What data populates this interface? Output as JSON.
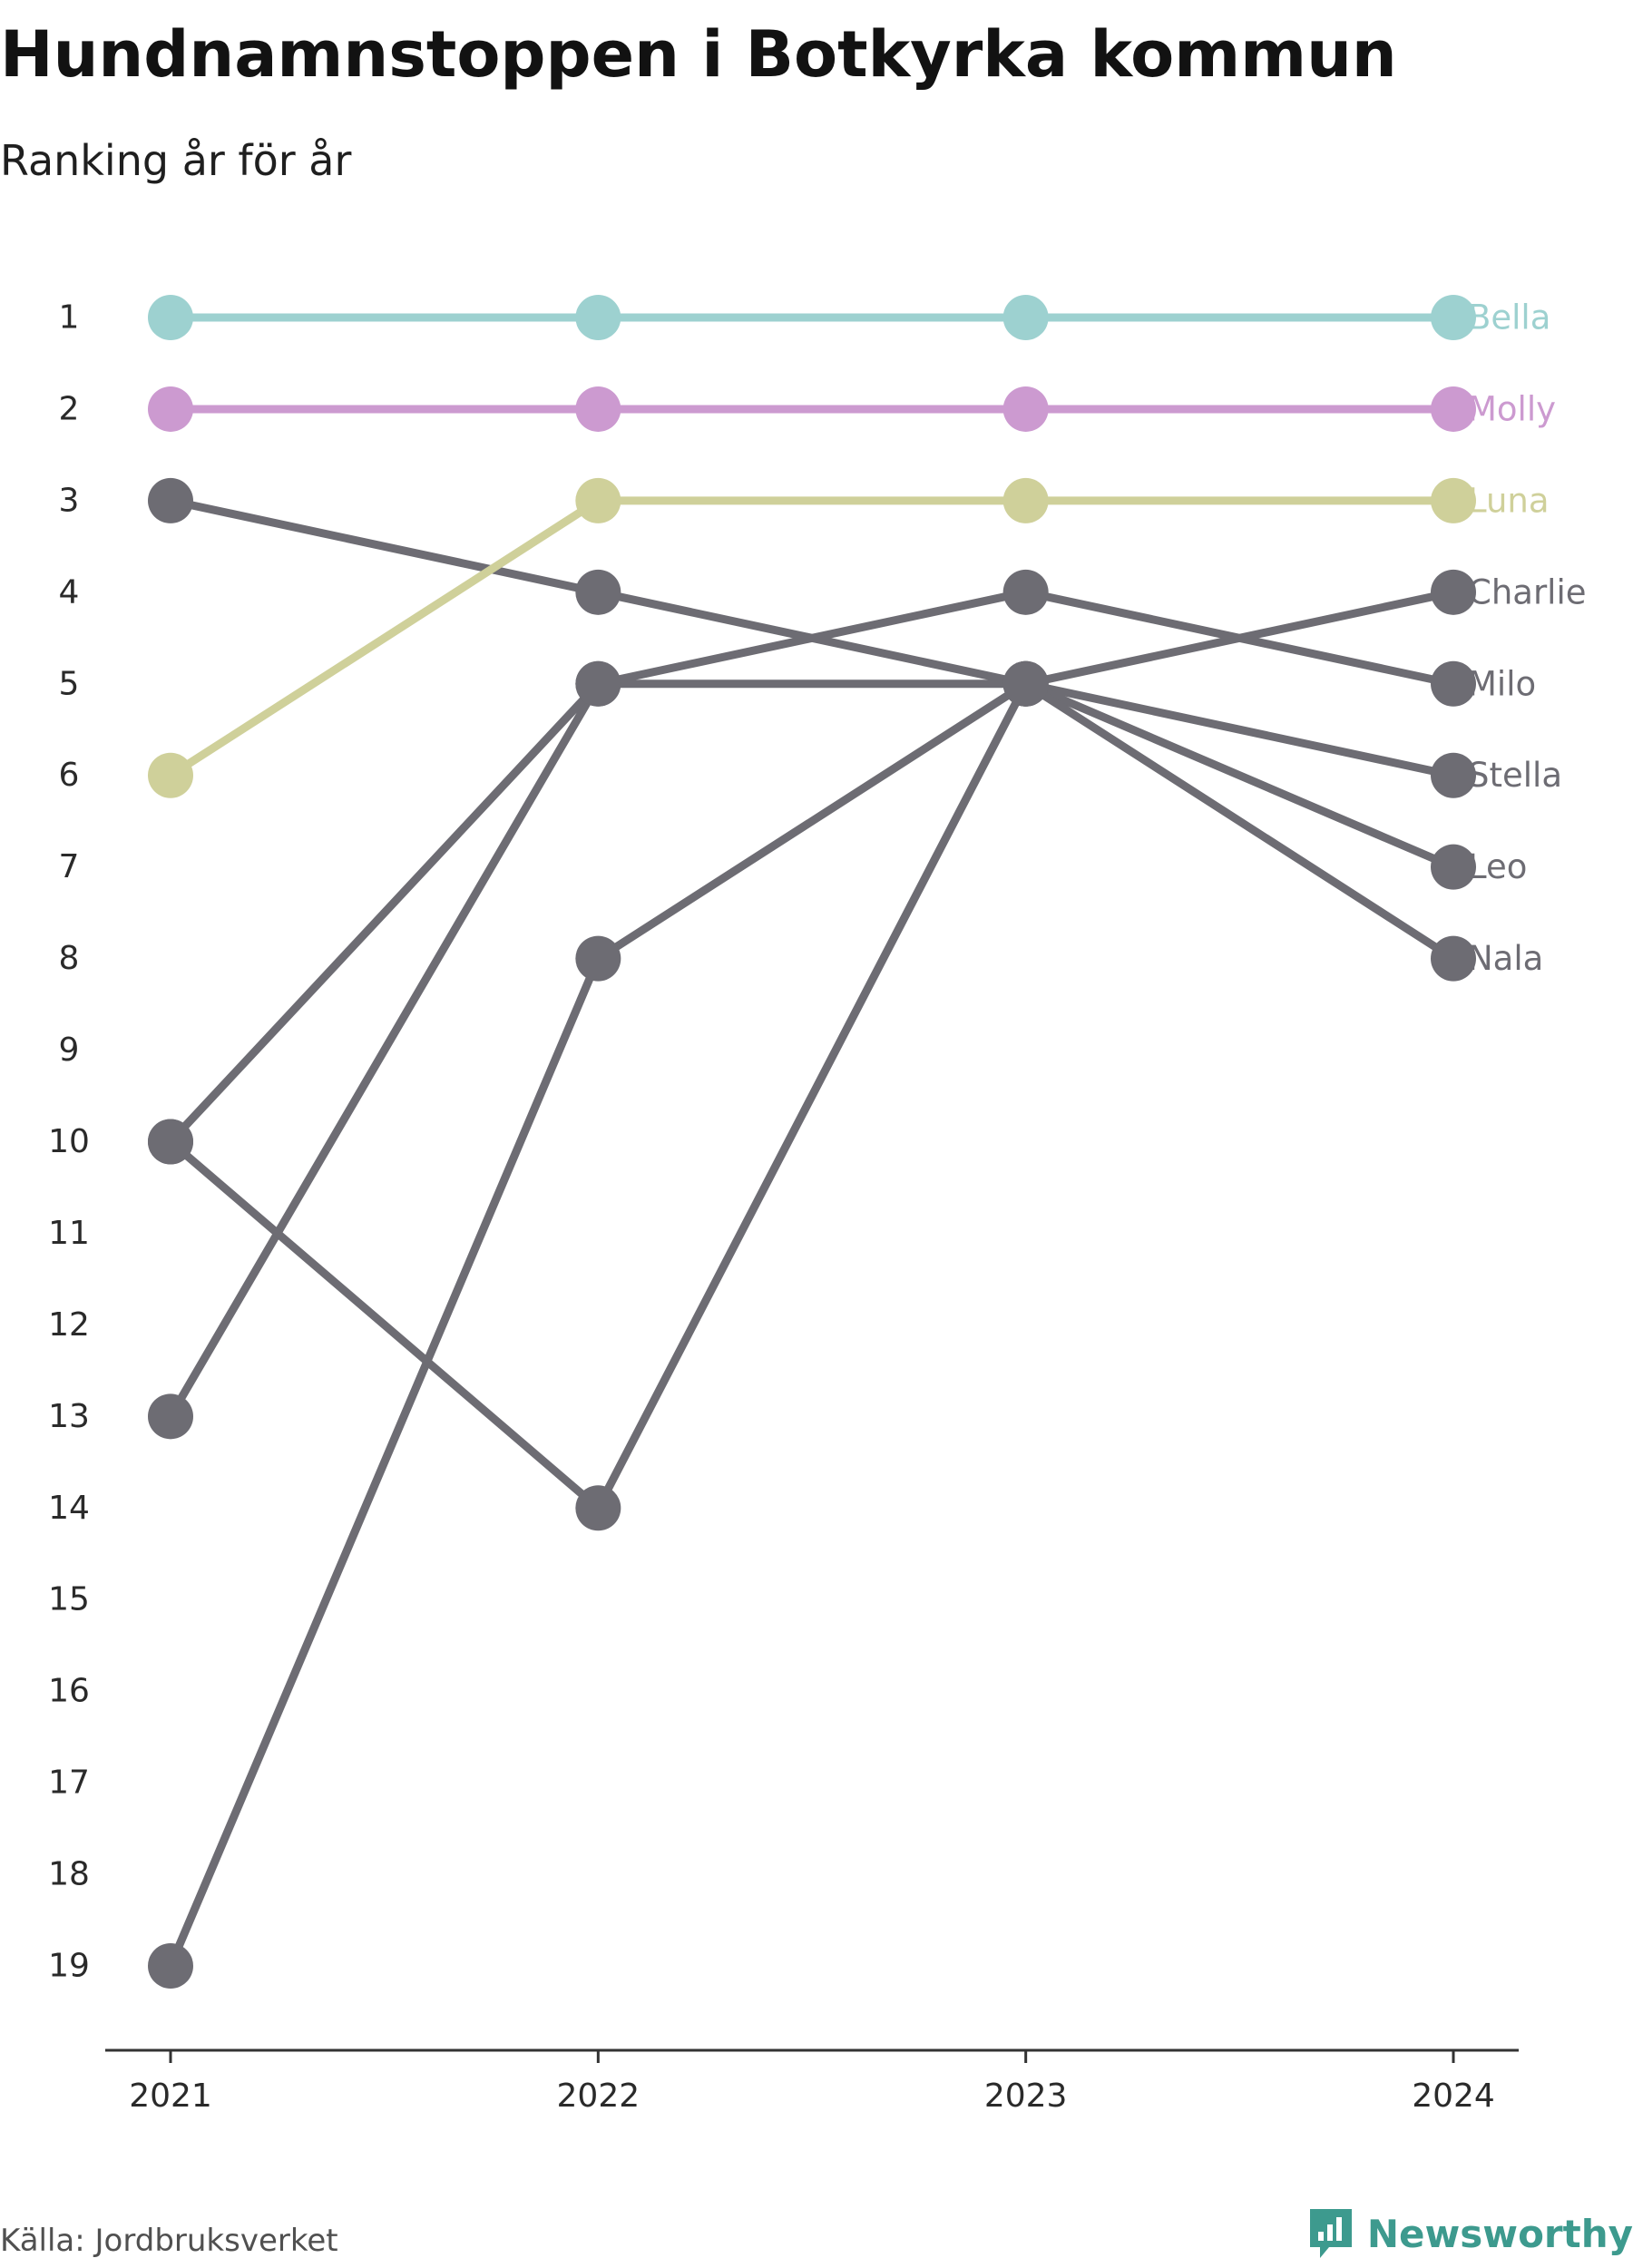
{
  "title": "Hundnamnstoppen i Botkyrka kommun",
  "subtitle": "Ranking år för år",
  "source": "Källa: Jordbruksverket",
  "brand": {
    "name": "Newsworthy",
    "logo_icon": "bar-chart-speech-bubble-icon",
    "color": "#3d9a8e"
  },
  "chart_data": {
    "type": "line",
    "subtype": "bump",
    "x": [
      "2021",
      "2022",
      "2023",
      "2024"
    ],
    "y_ticks": [
      "1",
      "2",
      "3",
      "4",
      "5",
      "6",
      "7",
      "8",
      "9",
      "10",
      "11",
      "12",
      "13",
      "14",
      "15",
      "16",
      "17",
      "18",
      "19"
    ],
    "ylim": [
      1,
      19
    ],
    "y_inverted": true,
    "grid": false,
    "legend": "direct-labels-right",
    "series": [
      {
        "name": "Bella",
        "color": "#9dd1d0",
        "values": [
          1,
          1,
          1,
          1
        ]
      },
      {
        "name": "Molly",
        "color": "#cc9ad0",
        "values": [
          2,
          2,
          2,
          2
        ]
      },
      {
        "name": "Luna",
        "color": "#cfd09a",
        "values": [
          6,
          3,
          3,
          3
        ]
      },
      {
        "name": "Charlie",
        "color": "#6d6c73",
        "values": [
          13,
          5,
          5,
          4
        ]
      },
      {
        "name": "Milo",
        "color": "#6d6c73",
        "values": [
          10,
          5,
          4,
          5
        ]
      },
      {
        "name": "Stella",
        "color": "#6d6c73",
        "values": [
          3,
          4,
          5,
          6
        ]
      },
      {
        "name": "Leo",
        "color": "#6d6c73",
        "values": [
          19,
          8,
          5,
          7
        ]
      },
      {
        "name": "Nala",
        "color": "#6d6c73",
        "values": [
          10,
          14,
          5,
          8
        ]
      }
    ]
  }
}
